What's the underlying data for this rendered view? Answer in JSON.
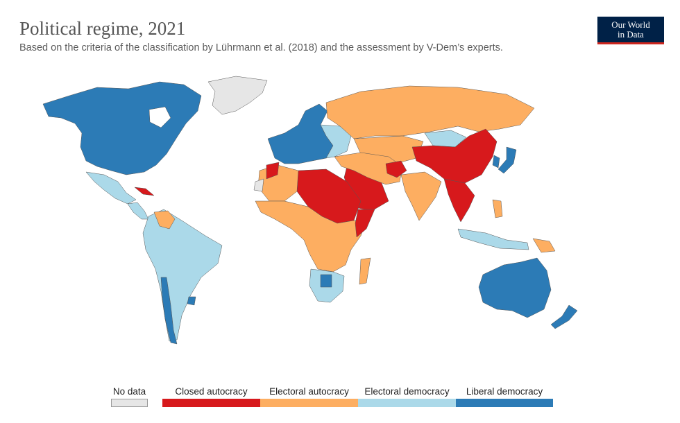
{
  "header": {
    "title": "Political regime, 2021",
    "subtitle": "Based on the criteria of the classification by Lührmann et al. (2018) and the assessment by V-Dem’s experts.",
    "logo_line1": "Our World",
    "logo_line2": "in Data"
  },
  "legend": {
    "items": [
      {
        "label": "No data",
        "color": "#e6e6e6"
      },
      {
        "label": "Closed autocracy",
        "color": "#d7191c"
      },
      {
        "label": "Electoral autocracy",
        "color": "#fdae61"
      },
      {
        "label": "Electoral democracy",
        "color": "#abd9e9"
      },
      {
        "label": "Liberal democracy",
        "color": "#2c7bb6"
      }
    ]
  },
  "colors": {
    "no_data": "#e6e6e6",
    "closed_autocracy": "#d7191c",
    "electoral_autocracy": "#fdae61",
    "electoral_democracy": "#abd9e9",
    "liberal_democracy": "#2c7bb6"
  }
}
